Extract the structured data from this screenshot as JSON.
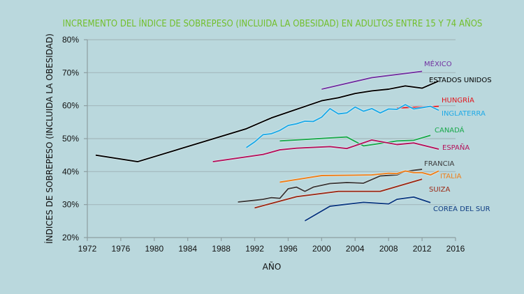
{
  "chart_data": {
    "type": "line",
    "title": "INCREMENTO DEL ÍNDICE DE SOBREPESO (INCLUIDA LA OBESIDAD) EN ADULTOS ENTRE 15 Y 74 AÑOS",
    "xlabel": "AÑO",
    "ylabel": "ÍNDICES DE SOBREPESO (INCLUIDA LA OBESIDAD)",
    "xlim": [
      1972,
      2016
    ],
    "ylim": [
      20,
      80
    ],
    "x_ticks": [
      "1972",
      "1976",
      "1980",
      "1984",
      "1988",
      "1992",
      "1996",
      "2000",
      "2004",
      "2008",
      "2012",
      "2016"
    ],
    "y_ticks": [
      "20%",
      "30%",
      "40%",
      "50%",
      "60%",
      "70%",
      "80%"
    ],
    "grid": true,
    "legend": "inline labels at line ends (right)",
    "series": [
      {
        "name": "MÉXICO",
        "color": "#7030a0",
        "points": [
          [
            2000,
            65.0
          ],
          [
            2006,
            68.5
          ],
          [
            2012,
            70.4
          ]
        ]
      },
      {
        "name": "ESTADOS UNIDOS",
        "color": "#000000",
        "points": [
          [
            1973,
            45.0
          ],
          [
            1978,
            43.0
          ],
          [
            1991,
            53.0
          ],
          [
            1994,
            56.3
          ],
          [
            2000,
            61.5
          ],
          [
            2002,
            62.4
          ],
          [
            2004,
            63.7
          ],
          [
            2006,
            64.5
          ],
          [
            2008,
            65.0
          ],
          [
            2010,
            66.0
          ],
          [
            2012,
            65.3
          ],
          [
            2014,
            67.5
          ]
        ]
      },
      {
        "name": "HUNGRÍA",
        "color": "#e3141b",
        "points": [
          [
            2009,
            59.3
          ],
          [
            2014,
            59.8
          ]
        ]
      },
      {
        "name": "INGLATERRA",
        "color": "#1ea9e6",
        "points": [
          [
            1991,
            47.3
          ],
          [
            1992,
            49.0
          ],
          [
            1993,
            51.2
          ],
          [
            1994,
            51.5
          ],
          [
            1995,
            52.5
          ],
          [
            1996,
            54.0
          ],
          [
            1997,
            54.5
          ],
          [
            1998,
            55.3
          ],
          [
            1999,
            55.2
          ],
          [
            2000,
            56.5
          ],
          [
            2001,
            59.1
          ],
          [
            2002,
            57.5
          ],
          [
            2003,
            57.8
          ],
          [
            2004,
            59.6
          ],
          [
            2005,
            58.3
          ],
          [
            2006,
            59.1
          ],
          [
            2007,
            57.8
          ],
          [
            2008,
            59.0
          ],
          [
            2009,
            58.9
          ],
          [
            2010,
            60.3
          ],
          [
            2011,
            59.0
          ],
          [
            2012,
            59.4
          ],
          [
            2013,
            59.8
          ],
          [
            2014,
            58.6
          ]
        ]
      },
      {
        "name": "CANADÁ",
        "color": "#19a84b",
        "points": [
          [
            1995,
            49.3
          ],
          [
            2003,
            50.5
          ],
          [
            2005,
            47.8
          ],
          [
            2009,
            49.3
          ],
          [
            2011,
            49.5
          ],
          [
            2013,
            51.0
          ]
        ]
      },
      {
        "name": "ESPAÑA",
        "color": "#b4115b",
        "points": [
          [
            1987,
            43.0
          ],
          [
            1993,
            45.2
          ],
          [
            1995,
            46.6
          ],
          [
            1997,
            47.1
          ],
          [
            2001,
            47.6
          ],
          [
            2003,
            47.0
          ],
          [
            2006,
            49.6
          ],
          [
            2009,
            48.2
          ],
          [
            2011,
            48.7
          ],
          [
            2014,
            46.8
          ]
        ]
      },
      {
        "name": "FRANCIA",
        "color": "#3c3c3c",
        "points": [
          [
            1990,
            30.8
          ],
          [
            1992,
            31.3
          ],
          [
            1993,
            31.6
          ],
          [
            1994,
            32.1
          ],
          [
            1995,
            31.9
          ],
          [
            1996,
            34.8
          ],
          [
            1997,
            35.3
          ],
          [
            1998,
            34.0
          ],
          [
            1999,
            35.3
          ],
          [
            2001,
            36.4
          ],
          [
            2003,
            36.7
          ],
          [
            2005,
            36.5
          ],
          [
            2007,
            38.7
          ],
          [
            2009,
            39.0
          ],
          [
            2010,
            40.1
          ],
          [
            2012,
            40.7
          ]
        ]
      },
      {
        "name": "ITALIA",
        "color": "#ef7f1a",
        "points": [
          [
            1995,
            36.8
          ],
          [
            2000,
            38.8
          ],
          [
            2006,
            39.0
          ],
          [
            2008,
            39.5
          ],
          [
            2009,
            39.4
          ],
          [
            2010,
            40.2
          ],
          [
            2011,
            39.7
          ],
          [
            2012,
            39.7
          ],
          [
            2013,
            39.0
          ],
          [
            2014,
            40.2
          ]
        ]
      },
      {
        "name": "SUIZA",
        "color": "#9b2a16",
        "points": [
          [
            1992,
            29.0
          ],
          [
            1997,
            32.4
          ],
          [
            2002,
            34.0
          ],
          [
            2007,
            34.0
          ],
          [
            2012,
            37.7
          ]
        ]
      },
      {
        "name": "COREA DEL SUR",
        "color": "#0e3c82",
        "points": [
          [
            1998,
            25.1
          ],
          [
            2001,
            29.5
          ],
          [
            2005,
            30.7
          ],
          [
            2008,
            30.2
          ],
          [
            2009,
            31.6
          ],
          [
            2011,
            32.3
          ],
          [
            2013,
            30.6
          ]
        ]
      }
    ]
  }
}
